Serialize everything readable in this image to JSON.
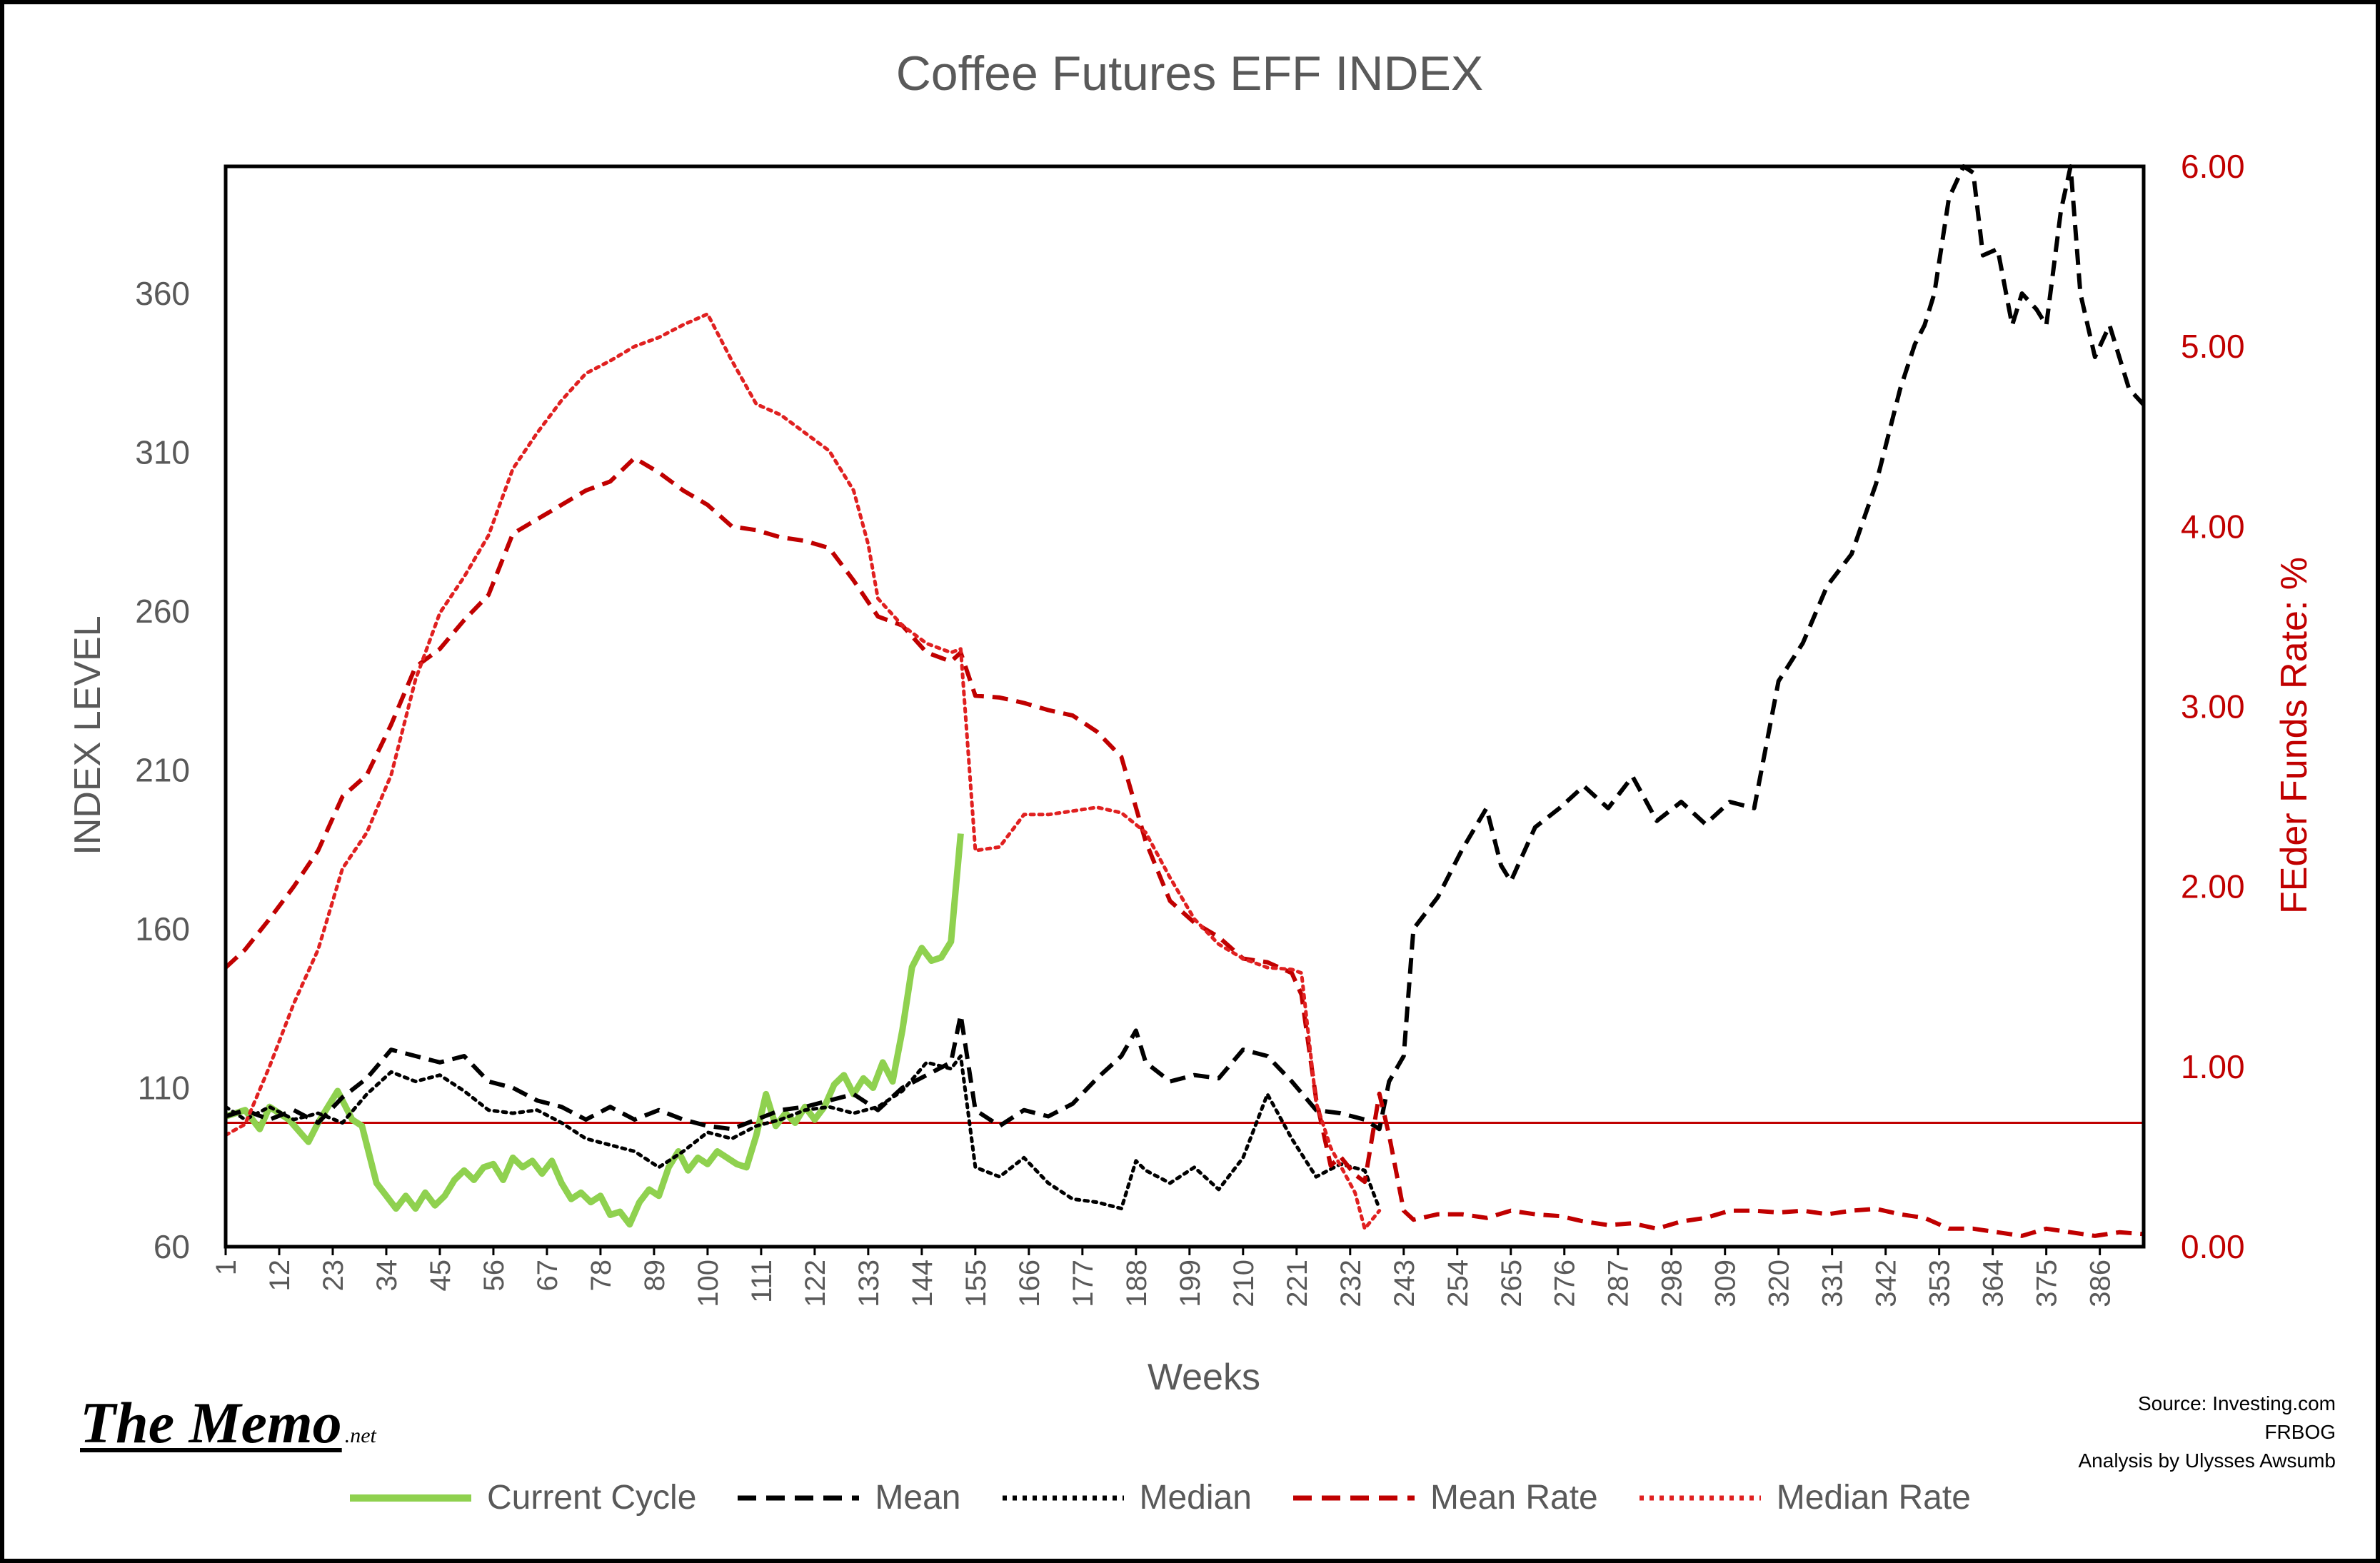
{
  "chart_data": {
    "type": "line",
    "title": "Coffee Futures EFF INDEX",
    "xlabel": "Weeks",
    "ylabel": "INDEX LEVEL",
    "y2label": "FEder Funds Rate: %",
    "x_range": [
      1,
      395
    ],
    "x_ticks": [
      "1",
      "12",
      "23",
      "34",
      "45",
      "56",
      "67",
      "78",
      "89",
      "100",
      "111",
      "122",
      "133",
      "144",
      "155",
      "166",
      "177",
      "188",
      "199",
      "210",
      "221",
      "232",
      "243",
      "254",
      "265",
      "276",
      "287",
      "298",
      "309",
      "320",
      "331",
      "342",
      "353",
      "364",
      "375",
      "386"
    ],
    "ylim": [
      60,
      400
    ],
    "y_ticks": [
      "60",
      "110",
      "160",
      "210",
      "260",
      "310",
      "360"
    ],
    "y2lim": [
      0,
      6
    ],
    "y2_ticks": [
      "0.00",
      "1.00",
      "2.00",
      "3.00",
      "4.00",
      "5.00",
      "6.00"
    ],
    "reference_line": {
      "axis": "y",
      "value": 99,
      "color": "#c00000"
    },
    "grid": false,
    "legend_position": "bottom",
    "series": [
      {
        "name": "Current Cycle",
        "color": "#8fd14f",
        "axis": "left",
        "style": "solid",
        "x": [
          1,
          5,
          8,
          10,
          14,
          18,
          20,
          24,
          27,
          29,
          32,
          34,
          36,
          38,
          40,
          42,
          44,
          46,
          48,
          50,
          52,
          54,
          56,
          58,
          60,
          62,
          64,
          66,
          68,
          70,
          72,
          74,
          76,
          78,
          80,
          82,
          84,
          86,
          88,
          90,
          92,
          94,
          96,
          98,
          100,
          102,
          104,
          106,
          108,
          110,
          112,
          114,
          116,
          118,
          120,
          122,
          124,
          126,
          128,
          130,
          132,
          134,
          136,
          138,
          140,
          142,
          144,
          146,
          148,
          150,
          152
        ],
        "values": [
          101,
          103,
          97,
          104,
          100,
          93,
          99,
          109,
          100,
          98,
          80,
          76,
          72,
          76,
          72,
          77,
          73,
          76,
          81,
          84,
          81,
          85,
          86,
          81,
          88,
          85,
          87,
          83,
          87,
          80,
          75,
          77,
          74,
          76,
          70,
          71,
          67,
          74,
          78,
          76,
          85,
          90,
          84,
          88,
          86,
          90,
          88,
          86,
          85,
          95,
          108,
          98,
          102,
          99,
          104,
          100,
          104,
          111,
          114,
          108,
          113,
          110,
          118,
          112,
          128,
          148,
          154,
          150,
          151,
          156,
          190
        ]
      },
      {
        "name": "Mean",
        "color": "#000000",
        "axis": "left",
        "style": "dashed",
        "x": [
          1,
          5,
          10,
          15,
          20,
          25,
          30,
          35,
          40,
          45,
          50,
          55,
          60,
          65,
          70,
          75,
          80,
          85,
          90,
          95,
          100,
          105,
          110,
          115,
          120,
          125,
          130,
          135,
          140,
          145,
          150,
          152,
          155,
          160,
          165,
          170,
          175,
          180,
          185,
          188,
          190,
          195,
          200,
          205,
          210,
          215,
          220,
          225,
          230,
          235,
          238,
          240,
          243,
          245,
          250,
          255,
          260,
          263,
          265,
          270,
          275,
          280,
          285,
          290,
          295,
          300,
          305,
          310,
          315,
          320,
          325,
          330,
          335,
          340,
          345,
          348,
          350,
          352,
          355,
          358,
          360,
          362,
          365,
          368,
          370,
          373,
          375,
          378,
          380,
          382,
          385,
          388,
          390,
          392,
          395
        ],
        "values": [
          101,
          103,
          100,
          103,
          99,
          107,
          113,
          122,
          120,
          118,
          120,
          112,
          110,
          106,
          104,
          100,
          104,
          100,
          103,
          100,
          98,
          97,
          100,
          103,
          104,
          106,
          108,
          103,
          110,
          114,
          118,
          133,
          103,
          98,
          103,
          101,
          105,
          113,
          120,
          128,
          118,
          112,
          114,
          113,
          122,
          120,
          112,
          103,
          102,
          100,
          97,
          112,
          120,
          160,
          170,
          185,
          198,
          180,
          175,
          192,
          198,
          205,
          198,
          208,
          194,
          200,
          193,
          200,
          198,
          238,
          250,
          268,
          278,
          300,
          330,
          344,
          350,
          360,
          390,
          400,
          398,
          372,
          374,
          350,
          360,
          355,
          350,
          386,
          400,
          360,
          340,
          350,
          340,
          330,
          325
        ]
      },
      {
        "name": "Median",
        "color": "#000000",
        "axis": "left",
        "style": "dotted",
        "x": [
          1,
          5,
          10,
          15,
          20,
          25,
          30,
          35,
          40,
          45,
          50,
          55,
          60,
          65,
          70,
          75,
          80,
          85,
          90,
          95,
          100,
          105,
          110,
          115,
          120,
          125,
          130,
          135,
          140,
          145,
          150,
          152,
          155,
          160,
          165,
          170,
          175,
          180,
          185,
          188,
          190,
          195,
          200,
          205,
          210,
          215,
          220,
          225,
          230,
          235,
          238
        ],
        "values": [
          104,
          100,
          104,
          100,
          102,
          99,
          108,
          115,
          112,
          114,
          109,
          103,
          102,
          103,
          99,
          94,
          92,
          90,
          85,
          90,
          96,
          94,
          98,
          100,
          103,
          104,
          102,
          104,
          109,
          118,
          116,
          120,
          85,
          82,
          88,
          80,
          75,
          74,
          72,
          87,
          84,
          80,
          85,
          78,
          88,
          108,
          94,
          82,
          86,
          84,
          72
        ]
      },
      {
        "name": "Mean Rate",
        "color": "#c00000",
        "axis": "right",
        "style": "dashed",
        "x": [
          1,
          5,
          10,
          15,
          20,
          25,
          30,
          35,
          40,
          45,
          50,
          55,
          60,
          65,
          70,
          75,
          80,
          85,
          90,
          95,
          100,
          105,
          110,
          115,
          120,
          125,
          130,
          135,
          140,
          145,
          150,
          152,
          155,
          160,
          165,
          170,
          175,
          180,
          185,
          190,
          195,
          200,
          205,
          210,
          215,
          220,
          222,
          225,
          228,
          230,
          233,
          235,
          238,
          240,
          243,
          245,
          250,
          255,
          260,
          265,
          270,
          275,
          280,
          285,
          290,
          295,
          300,
          305,
          310,
          315,
          320,
          325,
          330,
          335,
          340,
          345,
          350,
          355,
          360,
          365,
          370,
          375,
          380,
          385,
          390,
          395
        ],
        "values": [
          1.55,
          1.65,
          1.82,
          2.0,
          2.2,
          2.5,
          2.62,
          2.9,
          3.22,
          3.32,
          3.48,
          3.62,
          3.96,
          4.04,
          4.12,
          4.2,
          4.25,
          4.38,
          4.3,
          4.2,
          4.12,
          4.0,
          3.98,
          3.94,
          3.92,
          3.88,
          3.7,
          3.5,
          3.45,
          3.3,
          3.25,
          3.3,
          3.06,
          3.05,
          3.02,
          2.98,
          2.95,
          2.86,
          2.72,
          2.25,
          1.92,
          1.8,
          1.72,
          1.6,
          1.58,
          1.52,
          1.4,
          0.82,
          0.45,
          0.5,
          0.4,
          0.36,
          0.85,
          0.62,
          0.2,
          0.15,
          0.18,
          0.18,
          0.16,
          0.2,
          0.18,
          0.17,
          0.14,
          0.12,
          0.13,
          0.1,
          0.14,
          0.16,
          0.2,
          0.2,
          0.19,
          0.2,
          0.18,
          0.2,
          0.21,
          0.18,
          0.16,
          0.1,
          0.1,
          0.08,
          0.06,
          0.1,
          0.08,
          0.06,
          0.08,
          0.07
        ]
      },
      {
        "name": "Median Rate",
        "color": "#e02020",
        "axis": "right",
        "style": "dotted",
        "x": [
          1,
          5,
          10,
          15,
          20,
          25,
          30,
          35,
          40,
          45,
          50,
          55,
          60,
          65,
          70,
          75,
          80,
          85,
          90,
          95,
          100,
          105,
          110,
          115,
          120,
          125,
          130,
          133,
          135,
          140,
          145,
          150,
          152,
          155,
          160,
          165,
          170,
          175,
          180,
          185,
          190,
          195,
          200,
          205,
          210,
          215,
          220,
          222,
          225,
          228,
          230,
          233,
          235,
          238
        ],
        "values": [
          0.62,
          0.68,
          1.0,
          1.35,
          1.65,
          2.1,
          2.3,
          2.62,
          3.15,
          3.52,
          3.72,
          3.95,
          4.32,
          4.52,
          4.7,
          4.85,
          4.92,
          5.0,
          5.05,
          5.12,
          5.18,
          4.92,
          4.68,
          4.62,
          4.52,
          4.42,
          4.2,
          3.9,
          3.6,
          3.45,
          3.35,
          3.3,
          3.32,
          2.2,
          2.22,
          2.4,
          2.4,
          2.42,
          2.44,
          2.41,
          2.3,
          2.05,
          1.82,
          1.68,
          1.6,
          1.55,
          1.54,
          1.52,
          0.8,
          0.55,
          0.45,
          0.3,
          0.1,
          0.2
        ]
      }
    ]
  },
  "branding": {
    "logo_main": "The Memo",
    "logo_suffix": ".net"
  },
  "source": {
    "line1": "Source: Investing.com",
    "line2": "FRBOG",
    "line3": "Analysis by Ulysses Awsumb"
  }
}
